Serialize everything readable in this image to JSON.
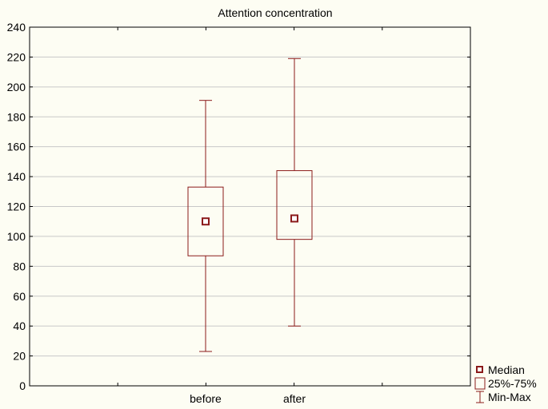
{
  "chart_data": {
    "type": "box",
    "title": "Attention concentration",
    "xlabel": "",
    "ylabel": "",
    "categories": [
      "before",
      "after"
    ],
    "boxes": [
      {
        "category": "before",
        "min": 23,
        "q1": 87,
        "median": 110,
        "q3": 133,
        "max": 191
      },
      {
        "category": "after",
        "min": 40,
        "q1": 98,
        "median": 112,
        "q3": 144,
        "max": 219
      }
    ],
    "ylim": [
      0,
      240
    ],
    "yticks": [
      0,
      20,
      40,
      60,
      80,
      100,
      120,
      140,
      160,
      180,
      200,
      220,
      240
    ],
    "grid": true,
    "legend_position": "bottom-right",
    "legend": [
      {
        "key": "median",
        "label": "Median"
      },
      {
        "key": "box",
        "label": "25%-75%"
      },
      {
        "key": "whisker",
        "label": "Min-Max"
      }
    ],
    "colors": {
      "series": "#8b1a1a",
      "grid": "#c8c8c8",
      "background": "#fdfdf3"
    }
  }
}
